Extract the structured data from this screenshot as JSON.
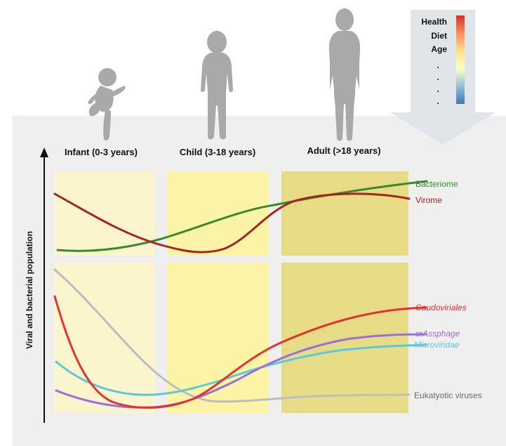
{
  "stages": [
    "Infant (0-3 years)",
    "Child (3-18 years)",
    "Adult (>18 years)"
  ],
  "y_axis_label": "Viral and bacterial population",
  "legend": {
    "factors": [
      "Health",
      "Diet",
      "Age",
      ".",
      ".",
      ".",
      "."
    ]
  },
  "top_series": [
    {
      "name": "Bacteriome",
      "color": "#3a8a2a",
      "italic": false
    },
    {
      "name": "Virome",
      "color": "#a52424",
      "italic": false
    }
  ],
  "bottom_series": [
    {
      "name": "Caudoviriales",
      "color": "#e53131",
      "italic": true
    },
    {
      "name": "crAssphage",
      "color": "#9b6fd6",
      "italic": true
    },
    {
      "name": "Microviridae",
      "color": "#5bc8dc",
      "italic": true
    },
    {
      "name": "Eukatyotic viruses",
      "color": "#6b6b6b",
      "italic": false
    }
  ],
  "colors": {
    "background_band": "#efefef",
    "infant_panel": "#faf5cc",
    "child_panel": "#fbf3a6",
    "adult_panel": "#e6dc86",
    "silhouette": "#a9a9a9",
    "legend_box": "#dfe5e8",
    "eukaryotic_line": "#bdbdbd"
  }
}
